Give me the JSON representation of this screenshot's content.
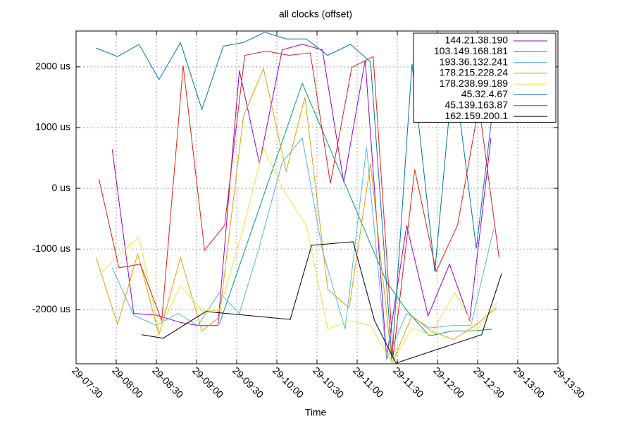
{
  "chart_data": {
    "type": "line",
    "title": "all clocks (offset)",
    "xlabel": "Time",
    "xlim": [
      "29-07:30",
      "29-13:30"
    ],
    "xticks": [
      "29-07:30",
      "29-08:00",
      "29-08:30",
      "29-09:00",
      "29-09:30",
      "29-10:00",
      "29-10:30",
      "29-11:00",
      "29-11:30",
      "29-12:00",
      "29-12:30",
      "29-13:00",
      "29-13:30"
    ],
    "ylim": [
      -2890,
      2590
    ],
    "yticks": [
      {
        "value": -2000,
        "label": "-2000 us"
      },
      {
        "value": -1000,
        "label": "-1000 us"
      },
      {
        "value": 0,
        "label": "0 us"
      },
      {
        "value": 1000,
        "label": "1000 us"
      },
      {
        "value": 2000,
        "label": "2000 us"
      }
    ],
    "grid": true,
    "legend": "top-right",
    "series": [
      {
        "name": "144.21.38.190",
        "color": "#9400d3",
        "x": [
          "29-07:57",
          "29-08:13",
          "29-08:30",
          "29-08:48",
          "29-09:01",
          "29-09:16",
          "29-09:32",
          "29-09:47",
          "29-10:04",
          "29-10:19",
          "29-10:34",
          "29-10:50",
          "29-11:06",
          "29-11:22",
          "29-11:37",
          "29-11:53",
          "29-12:09",
          "29-12:24",
          "29-12:40"
        ],
        "values": [
          640,
          -2060,
          -2090,
          -2210,
          -2260,
          -2260,
          1940,
          410,
          2280,
          2370,
          2280,
          100,
          2110,
          -2790,
          -610,
          -2100,
          -1250,
          -2180,
          830
        ]
      },
      {
        "name": "103.149.168.181",
        "color": "#009e73",
        "x": [
          "29-09:17",
          "29-10:19",
          "29-11:22",
          "29-11:37",
          "29-11:54",
          "29-12:11",
          "29-12:25",
          "29-12:41"
        ],
        "values": [
          -2240,
          1730,
          -1540,
          -2010,
          -2430,
          -2350,
          -2350,
          -2320
        ]
      },
      {
        "name": "193.36.132.241",
        "color": "#56b4e9",
        "x": [
          "29-07:57",
          "29-08:13",
          "29-08:30",
          "29-08:46",
          "29-09:01",
          "29-09:17",
          "29-09:32",
          "29-09:47",
          "29-10:04",
          "29-10:19",
          "29-10:34",
          "29-10:51",
          "29-11:07",
          "29-11:22",
          "29-11:37",
          "29-11:54",
          "29-12:11",
          "29-12:25",
          "29-12:42"
        ],
        "values": [
          -1310,
          -2090,
          -2260,
          -2060,
          -2260,
          -1720,
          -2060,
          -960,
          430,
          830,
          -1020,
          -2320,
          680,
          -2820,
          -2060,
          -2300,
          -2260,
          -2260,
          -670
        ]
      },
      {
        "name": "178.215.228.24",
        "color": "#e69f00",
        "x": [
          "29-07:45",
          "29-08:01",
          "29-08:16",
          "29-08:32",
          "29-08:48",
          "29-09:04",
          "29-09:17",
          "29-09:35",
          "29-09:50",
          "29-10:07",
          "29-10:21",
          "29-10:38",
          "29-10:54",
          "29-11:10",
          "29-11:26",
          "29-11:41",
          "29-11:55",
          "29-12:12",
          "29-12:28",
          "29-12:44"
        ],
        "values": [
          -1140,
          -2240,
          -1080,
          -2410,
          -1140,
          -2350,
          -2120,
          1180,
          1970,
          280,
          1500,
          -1660,
          -1970,
          410,
          -2880,
          -2100,
          -2350,
          -2490,
          -2260,
          -1970
        ]
      },
      {
        "name": "178.238.99.189",
        "color": "#f0e442",
        "x": [
          "29-07:45",
          "29-08:00",
          "29-08:17",
          "29-08:32",
          "29-08:48",
          "29-09:04",
          "29-09:17",
          "29-09:34",
          "29-09:50",
          "29-10:05",
          "29-10:22",
          "29-10:38",
          "29-10:54",
          "29-11:10",
          "29-11:26",
          "29-11:41",
          "29-11:55",
          "29-12:13",
          "29-12:29",
          "29-12:45"
        ],
        "values": [
          -1480,
          -1140,
          -800,
          -2350,
          -1600,
          -2010,
          -2010,
          -730,
          660,
          -30,
          -610,
          -2320,
          -2180,
          -2260,
          -2880,
          -2300,
          -2410,
          -1720,
          -2350,
          -1870
        ]
      },
      {
        "name": "45.32.4.67",
        "color": "#0072b2",
        "x": [
          "29-07:45",
          "29-08:01",
          "29-08:17",
          "29-08:32",
          "29-08:48",
          "29-09:04",
          "29-09:20",
          "29-09:35",
          "29-09:51",
          "29-10:07",
          "29-10:22",
          "29-10:38",
          "29-10:55",
          "29-11:10",
          "29-11:26",
          "29-11:41",
          "29-11:58",
          "29-12:12",
          "29-12:29",
          "29-12:45"
        ],
        "values": [
          2310,
          2170,
          2370,
          1790,
          2400,
          1300,
          2340,
          2400,
          2570,
          2460,
          2460,
          2190,
          2370,
          2080,
          -2820,
          2050,
          -1370,
          1990,
          -990,
          1990
        ]
      },
      {
        "name": "45.139.163.87",
        "color": "#e51e10",
        "x": [
          "29-07:47",
          "29-08:02",
          "29-08:18",
          "29-08:34",
          "29-08:50",
          "29-09:06",
          "29-09:21",
          "29-09:36",
          "29-09:52",
          "29-10:09",
          "29-10:25",
          "29-10:40",
          "29-10:56",
          "29-11:12",
          "29-11:27",
          "29-11:43",
          "29-11:59",
          "29-12:15",
          "29-12:31",
          "29-12:46"
        ],
        "values": [
          160,
          -1310,
          -1250,
          -2180,
          2020,
          -1020,
          -610,
          2190,
          2260,
          2190,
          2230,
          80,
          1990,
          2170,
          -2760,
          310,
          -1370,
          -610,
          1360,
          -1140
        ]
      },
      {
        "name": "162.159.200.1",
        "color": "#000000",
        "x": [
          "29-08:19",
          "29-08:35",
          "29-09:07",
          "29-10:10",
          "29-10:26",
          "29-10:57",
          "29-11:13",
          "29-11:29",
          "29-12:33",
          "29-12:48"
        ],
        "values": [
          -2410,
          -2470,
          -2030,
          -2160,
          -940,
          -880,
          -2180,
          -2880,
          -2410,
          -1400
        ]
      }
    ]
  }
}
